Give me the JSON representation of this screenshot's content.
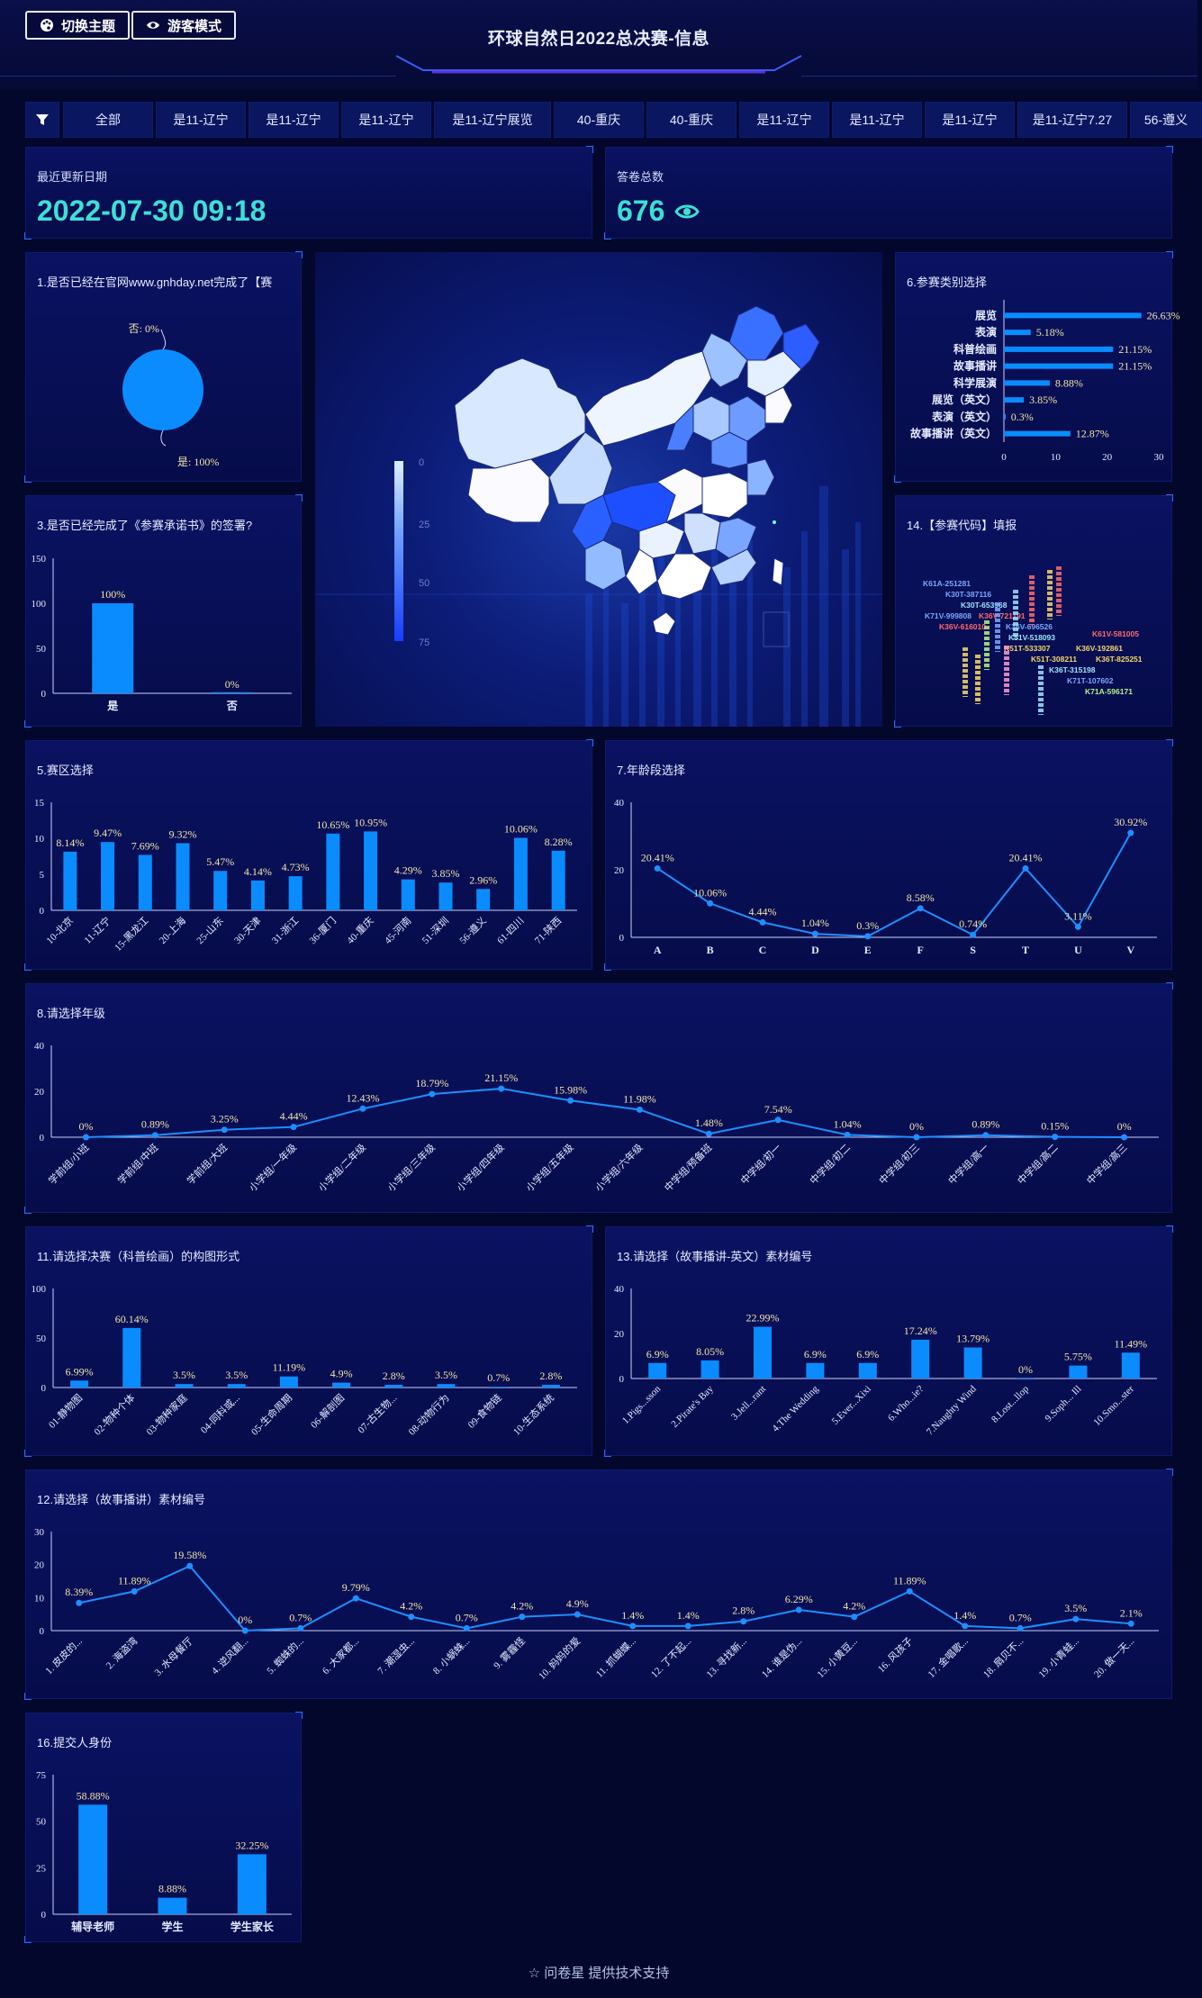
{
  "header": {
    "theme_button": "切换主题",
    "guest_button": "游客模式",
    "title": "环球自然日2022总决赛-信息"
  },
  "filters": [
    "全部",
    "是11-辽宁",
    "是11-辽宁",
    "是11-辽宁",
    "是11-辽宁展览",
    "40-重庆",
    "40-重庆",
    "是11-辽宁",
    "是11-辽宁",
    "是11-辽宁",
    "是11-辽宁7.27",
    "56-遵义"
  ],
  "kpis": {
    "updated_label": "最近更新日期",
    "updated_value": "2022-07-30 09:18",
    "total_label": "答卷总数",
    "total_value": "676"
  },
  "map": {
    "legend_ticks": [
      "0",
      "25",
      "50",
      "75"
    ]
  },
  "wordcloud": [
    {
      "t": "K61A-251281",
      "c": "#7aa8ff"
    },
    {
      "t": "K30T-387116",
      "c": "#7aa8ff"
    },
    {
      "t": "K30T-653968",
      "c": "#9fe3ff"
    },
    {
      "t": "K71V-999808",
      "c": "#7aa8ff"
    },
    {
      "t": "K36V-721191",
      "c": "#ff6b6b"
    },
    {
      "t": "K36V-696526",
      "c": "#7aa8ff"
    },
    {
      "t": "K36V-616010",
      "c": "#ff6b6b"
    },
    {
      "t": "K51V-518093",
      "c": "#9fe3ff"
    },
    {
      "t": "K61V-581005",
      "c": "#ff6b6b"
    },
    {
      "t": "K51T-533307",
      "c": "#f5d76e"
    },
    {
      "t": "K36V-192861",
      "c": "#f5d76e"
    },
    {
      "t": "K51T-308211",
      "c": "#f5d76e"
    },
    {
      "t": "K36T-825251",
      "c": "#f5d76e"
    },
    {
      "t": "K36T-315198",
      "c": "#9fe3ff"
    },
    {
      "t": "K71T-107602",
      "c": "#7aa8ff"
    },
    {
      "t": "K71A-596171",
      "c": "#b4f08a"
    }
  ],
  "charts": {
    "c1": {
      "title": "1.是否已经在官网www.gnhday.net完成了【赛",
      "type": "pie",
      "slices": [
        {
          "label": "否: 0%",
          "value": 0
        },
        {
          "label": "是: 100%",
          "value": 100
        }
      ]
    },
    "c3": {
      "title": "3.是否已经完成了《参赛承诺书》的签署?",
      "type": "bar",
      "categories": [
        "是",
        "否"
      ],
      "values": [
        100,
        0
      ],
      "labels": [
        "100%",
        "0%"
      ],
      "ylim": [
        0,
        150
      ],
      "ticks": [
        0,
        50,
        100,
        150
      ]
    },
    "c6": {
      "title": "6.参赛类别选择",
      "type": "hbar",
      "categories": [
        "展览",
        "表演",
        "科普绘画",
        "故事播讲",
        "科学展演",
        "展览（英文）",
        "表演（英文）",
        "故事播讲（英文）"
      ],
      "values": [
        26.63,
        5.18,
        21.15,
        21.15,
        8.88,
        3.85,
        0.3,
        12.87
      ],
      "labels": [
        "26.63%",
        "5.18%",
        "21.15%",
        "21.15%",
        "8.88%",
        "3.85%",
        "0.3%",
        "12.87%"
      ],
      "xlim": [
        0,
        30
      ],
      "ticks": [
        0,
        10,
        20,
        30
      ]
    },
    "c14": {
      "title": "14.【参赛代码】填报",
      "type": "wordcloud"
    },
    "c5": {
      "title": "5.赛区选择",
      "type": "bar",
      "categories": [
        "10-北京",
        "11-辽宁",
        "15-黑龙江",
        "20-上海",
        "25-山东",
        "30-天津",
        "31-浙江",
        "36-厦门",
        "40-重庆",
        "45-河南",
        "51-深圳",
        "56-遵义",
        "61-四川",
        "71-陕西"
      ],
      "values": [
        8.14,
        9.47,
        7.69,
        9.32,
        5.47,
        4.14,
        4.73,
        10.65,
        10.95,
        4.29,
        3.85,
        2.96,
        10.06,
        8.28
      ],
      "labels": [
        "8.14%",
        "9.47%",
        "7.69%",
        "9.32%",
        "5.47%",
        "4.14%",
        "4.73%",
        "10.65%",
        "10.95%",
        "4.29%",
        "3.85%",
        "2.96%",
        "10.06%",
        "8.28%"
      ],
      "ylim": [
        0,
        15
      ],
      "ticks": [
        0,
        5,
        10,
        15
      ]
    },
    "c7": {
      "title": "7.年龄段选择",
      "type": "line",
      "categories": [
        "A",
        "B",
        "C",
        "D",
        "E",
        "F",
        "S",
        "T",
        "U",
        "V"
      ],
      "values": [
        20.41,
        10.06,
        4.44,
        1.04,
        0.3,
        8.58,
        0.74,
        20.41,
        3.11,
        30.92
      ],
      "labels": [
        "20.41%",
        "10.06%",
        "4.44%",
        "1.04%",
        "0.3%",
        "8.58%",
        "0.74%",
        "20.41%",
        "3.11%",
        "30.92%"
      ],
      "ylim": [
        0,
        40
      ],
      "ticks": [
        0,
        20,
        40
      ]
    },
    "c8": {
      "title": "8.请选择年级",
      "type": "line",
      "categories": [
        "学前组/小班",
        "学前组/中班",
        "学前组/大班",
        "小学组/一年级",
        "小学组/二年级",
        "小学组/三年级",
        "小学组/四年级",
        "小学组/五年级",
        "小学组/六年级",
        "中学组/预备班",
        "中学组/初一",
        "中学组/初二",
        "中学组/初三",
        "中学组/高一",
        "中学组/高二",
        "中学组/高三"
      ],
      "values": [
        0,
        0.89,
        3.25,
        4.44,
        12.43,
        18.79,
        21.15,
        15.98,
        11.98,
        1.48,
        7.54,
        1.04,
        0,
        0.89,
        0.15,
        0
      ],
      "labels": [
        "0%",
        "0.89%",
        "3.25%",
        "4.44%",
        "12.43%",
        "18.79%",
        "21.15%",
        "15.98%",
        "11.98%",
        "1.48%",
        "7.54%",
        "1.04%",
        "0%",
        "0.89%",
        "0.15%",
        "0%"
      ],
      "ylim": [
        0,
        40
      ],
      "ticks": [
        0,
        20,
        40
      ]
    },
    "c11": {
      "title": "11.请选择决赛（科普绘画）的构图形式",
      "type": "bar",
      "categories": [
        "01-静物图",
        "02-物种个体",
        "03-物种家庭",
        "04-同科或...",
        "05-生命周期",
        "06-解剖图",
        "07-古生物...",
        "08-动物行为",
        "09-食物链",
        "10-生态系统"
      ],
      "values": [
        6.99,
        60.14,
        3.5,
        3.5,
        11.19,
        4.9,
        2.8,
        3.5,
        0.7,
        2.8
      ],
      "labels": [
        "6.99%",
        "60.14%",
        "3.5%",
        "3.5%",
        "11.19%",
        "4.9%",
        "2.8%",
        "3.5%",
        "0.7%",
        "2.8%"
      ],
      "ylim": [
        0,
        100
      ],
      "ticks": [
        0,
        50,
        100
      ]
    },
    "c13": {
      "title": "13.请选择（故事播讲-英文）素材编号",
      "type": "bar",
      "categories": [
        "1.Pigs...sson",
        "2.Pirate's Bay",
        "3.Jell...rant",
        "4.The Wedding",
        "5.Ever...Xixi",
        "6.Who...ie?",
        "7.Naughty Wind",
        "8.Lost...llop",
        "9.Soph... Ill",
        "10.Smo...ster"
      ],
      "values": [
        6.9,
        8.05,
        22.99,
        6.9,
        6.9,
        17.24,
        13.79,
        0,
        5.75,
        11.49
      ],
      "labels": [
        "6.9%",
        "8.05%",
        "22.99%",
        "6.9%",
        "6.9%",
        "17.24%",
        "13.79%",
        "0%",
        "5.75%",
        "11.49%"
      ],
      "ylim": [
        0,
        40
      ],
      "ticks": [
        0,
        20,
        40
      ]
    },
    "c12": {
      "title": "12.请选择（故事播讲）素材编号",
      "type": "line",
      "categories": [
        "1. 皮皮的...",
        "2. 海盗湾",
        "3. 水母餐厅",
        "4. 逆风翻...",
        "5. 蜘蛛的...",
        "6. 大家都...",
        "7. 潮湿虫...",
        "8. 小蜗蛛...",
        "9. 雾霾怪",
        "10. 妈妈的爱",
        "11. 抓蝴蝶...",
        "12. 了不起...",
        "13. 寻找新...",
        "14. 谁是伪...",
        "15. 小黄豆...",
        "16. 风孩子",
        "17. 金唱歌...",
        "18. 扇贝不...",
        "19. 小青蛙...",
        "20. 做一天..."
      ],
      "values": [
        8.39,
        11.89,
        19.58,
        0,
        0.7,
        9.79,
        4.2,
        0.7,
        4.2,
        4.9,
        1.4,
        1.4,
        2.8,
        6.29,
        4.2,
        11.89,
        1.4,
        0.7,
        3.5,
        2.1
      ],
      "labels": [
        "8.39%",
        "11.89%",
        "19.58%",
        "0%",
        "0.7%",
        "9.79%",
        "4.2%",
        "0.7%",
        "4.2%",
        "4.9%",
        "1.4%",
        "1.4%",
        "2.8%",
        "6.29%",
        "4.2%",
        "11.89%",
        "1.4%",
        "0.7%",
        "3.5%",
        "2.1%"
      ],
      "ylim": [
        0,
        30
      ],
      "ticks": [
        0,
        10,
        20,
        30
      ]
    },
    "c16": {
      "title": "16.提交人身份",
      "type": "bar",
      "categories": [
        "辅导老师",
        "学生",
        "学生家长"
      ],
      "values": [
        58.88,
        8.88,
        32.25
      ],
      "labels": [
        "58.88%",
        "8.88%",
        "32.25%"
      ],
      "ylim": [
        0,
        75
      ],
      "ticks": [
        0,
        25,
        50,
        75
      ]
    }
  },
  "footer": "问卷星 提供技术支持",
  "colors": {
    "bar": "#0a8cff",
    "line": "#1e8fff",
    "label": "#f3e6a8",
    "axis": "#e6ecff",
    "teal": "#3de0d6"
  }
}
